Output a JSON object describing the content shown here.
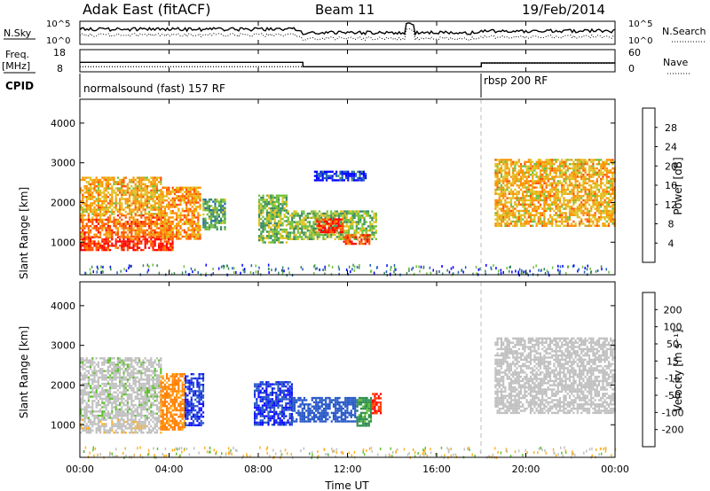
{
  "header": {
    "station": "Adak East (fitACF)",
    "beam": "Beam 11",
    "date": "19/Feb/2014"
  },
  "panels": {
    "nsky_label": "N.Sky",
    "nsearch_label": "N.Search",
    "nsky_ticks": [
      "10^5",
      "10^0"
    ],
    "nsearch_ticks": [
      "10^5",
      "10^0"
    ],
    "freq_label": "Freq.",
    "freq_unit": "[MHz]",
    "freq_ticks": [
      "18",
      "8"
    ],
    "nave_label": "Nave",
    "nave_ticks": [
      "60",
      "0"
    ],
    "cpid_label": "CPID",
    "cpid_segments": [
      {
        "label": "normalsound (fast) 157 RF",
        "start_hour": 0
      },
      {
        "label": "rbsp 200 RF",
        "start_hour": 18
      }
    ]
  },
  "axes": {
    "xlabel": "Time UT",
    "ylabel": "Slant Range [km]",
    "x_ticks": [
      "00:00",
      "04:00",
      "08:00",
      "12:00",
      "16:00",
      "20:00",
      "00:00"
    ],
    "y_ticks": [
      "1000",
      "2000",
      "3000",
      "4000"
    ]
  },
  "colorbars": {
    "power": {
      "label": "Power [dB]",
      "ticks": [
        "4",
        "8",
        "12",
        "16",
        "20",
        "24",
        "28"
      ],
      "colors": [
        "#0000ff",
        "#1f5fbf",
        "#3a8a60",
        "#6fbf3a",
        "#e0c020",
        "#ff9000",
        "#ff5000",
        "#ff0000"
      ]
    },
    "velocity": {
      "label": "Velocity [m s⁻¹]",
      "ticks": [
        "200",
        "100",
        "50",
        "15",
        "-15",
        "-50",
        "-100",
        "-200"
      ],
      "colors": [
        "#1010ff",
        "#2858c8",
        "#2f8f4f",
        "#60c030",
        "#c0c0c0",
        "#ffb020",
        "#ff8000",
        "#ff4000",
        "#ff0000"
      ]
    }
  },
  "chart_data": {
    "type": "heatmap",
    "x_range_hours": [
      0,
      24
    ],
    "y_range_km": [
      180,
      4600
    ],
    "frequency_mhz": [
      {
        "start": 0,
        "end": 10,
        "value": 12.3
      },
      {
        "start": 10,
        "end": 18,
        "value": 10.3
      },
      {
        "start": 18,
        "end": 24,
        "value": 12.0
      }
    ],
    "power_regions": [
      {
        "t0": 0.0,
        "t1": 4.2,
        "r0": 820,
        "r1": 1150,
        "power": 28
      },
      {
        "t0": 0.0,
        "t1": 4.0,
        "r0": 1150,
        "r1": 1700,
        "power": 24
      },
      {
        "t0": 0.0,
        "t1": 3.6,
        "r0": 1700,
        "r1": 2650,
        "power": 20
      },
      {
        "t0": 3.6,
        "t1": 5.4,
        "r0": 1100,
        "r1": 2400,
        "power": 22
      },
      {
        "t0": 5.5,
        "t1": 6.5,
        "r0": 1300,
        "r1": 2100,
        "power": 12
      },
      {
        "t0": 8.0,
        "t1": 9.3,
        "r0": 1000,
        "r1": 2200,
        "power": 14
      },
      {
        "t0": 9.3,
        "t1": 13.3,
        "r0": 1100,
        "r1": 1800,
        "power": 14
      },
      {
        "t0": 10.6,
        "t1": 11.8,
        "r0": 1250,
        "r1": 1600,
        "power": 28
      },
      {
        "t0": 11.8,
        "t1": 13.0,
        "r0": 950,
        "r1": 1200,
        "power": 26
      },
      {
        "t0": 10.5,
        "t1": 12.8,
        "r0": 2550,
        "r1": 2800,
        "power": 4
      },
      {
        "t0": 18.6,
        "t1": 24.0,
        "r0": 1400,
        "r1": 3100,
        "power": 20
      }
    ],
    "velocity_regions": [
      {
        "t0": 0.0,
        "t1": 3.6,
        "r0": 800,
        "r1": 1150,
        "velocity": -5
      },
      {
        "t0": 0.0,
        "t1": 3.6,
        "r0": 1150,
        "r1": 2700,
        "velocity": 5
      },
      {
        "t0": 3.6,
        "t1": 4.7,
        "r0": 900,
        "r1": 2300,
        "velocity": -60
      },
      {
        "t0": 4.7,
        "t1": 5.5,
        "r0": 1000,
        "r1": 2300,
        "velocity": 200
      },
      {
        "t0": 7.8,
        "t1": 9.5,
        "r0": 1000,
        "r1": 2100,
        "velocity": 200
      },
      {
        "t0": 9.5,
        "t1": 12.4,
        "r0": 1100,
        "r1": 1700,
        "velocity": 180
      },
      {
        "t0": 12.4,
        "t1": 13.1,
        "r0": 1000,
        "r1": 1700,
        "velocity": 60
      },
      {
        "t0": 13.1,
        "t1": 13.5,
        "r0": 1300,
        "r1": 1800,
        "velocity": -200
      },
      {
        "t0": 18.6,
        "t1": 24.0,
        "r0": 1300,
        "r1": 3200,
        "velocity": 0
      }
    ]
  }
}
